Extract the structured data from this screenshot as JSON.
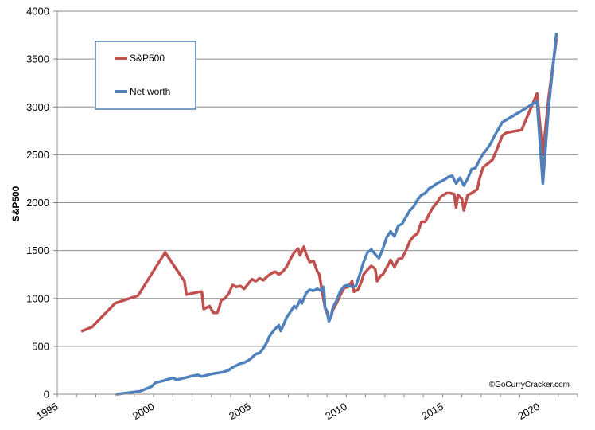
{
  "chart_data": {
    "type": "line",
    "ylabel": "S&P500",
    "ylim": [
      0,
      4000
    ],
    "xlim": [
      1995,
      2022
    ],
    "y_ticks": [
      0,
      500,
      1000,
      1500,
      2000,
      2500,
      3000,
      3500,
      4000
    ],
    "y_tick_labels": [
      "0",
      "500",
      "1000",
      "1500",
      "2000",
      "2500",
      "3000",
      "3500",
      "4000"
    ],
    "x_ticks": [
      1995,
      2000,
      2005,
      2010,
      2015,
      2020
    ],
    "x_tick_labels": [
      "1995",
      "2000",
      "2005",
      "2010",
      "2015",
      "2020"
    ],
    "grid": "horizontal",
    "legend_placement": "top-left",
    "annotation": "©GoCurryCracker.com",
    "series": [
      {
        "name": "S&P500",
        "color": "#c0504d",
        "points": [
          [
            1996.3,
            660
          ],
          [
            1996.8,
            700
          ],
          [
            1998.0,
            950
          ],
          [
            1999.2,
            1030
          ],
          [
            2000.6,
            1480
          ],
          [
            2001.6,
            1180
          ],
          [
            2001.7,
            1040
          ],
          [
            2002.4,
            1070
          ],
          [
            2002.5,
            1070
          ],
          [
            2002.6,
            890
          ],
          [
            2002.9,
            920
          ],
          [
            2003.1,
            850
          ],
          [
            2003.3,
            850
          ],
          [
            2003.4,
            900
          ],
          [
            2003.5,
            980
          ],
          [
            2003.7,
            1000
          ],
          [
            2003.9,
            1050
          ],
          [
            2004.1,
            1140
          ],
          [
            2004.3,
            1120
          ],
          [
            2004.5,
            1130
          ],
          [
            2004.7,
            1100
          ],
          [
            2004.9,
            1150
          ],
          [
            2005.1,
            1200
          ],
          [
            2005.3,
            1180
          ],
          [
            2005.5,
            1210
          ],
          [
            2005.7,
            1190
          ],
          [
            2005.9,
            1230
          ],
          [
            2006.1,
            1260
          ],
          [
            2006.3,
            1280
          ],
          [
            2006.5,
            1250
          ],
          [
            2006.7,
            1280
          ],
          [
            2006.9,
            1330
          ],
          [
            2007.1,
            1410
          ],
          [
            2007.3,
            1480
          ],
          [
            2007.5,
            1520
          ],
          [
            2007.6,
            1450
          ],
          [
            2007.8,
            1540
          ],
          [
            2007.9,
            1470
          ],
          [
            2008.1,
            1380
          ],
          [
            2008.3,
            1390
          ],
          [
            2008.5,
            1280
          ],
          [
            2008.6,
            1250
          ],
          [
            2008.7,
            1130
          ],
          [
            2008.8,
            1010
          ],
          [
            2008.9,
            900
          ],
          [
            2009.0,
            850
          ],
          [
            2009.1,
            780
          ],
          [
            2009.2,
            800
          ],
          [
            2009.3,
            880
          ],
          [
            2009.5,
            950
          ],
          [
            2009.7,
            1040
          ],
          [
            2009.9,
            1110
          ],
          [
            2010.1,
            1120
          ],
          [
            2010.3,
            1180
          ],
          [
            2010.4,
            1070
          ],
          [
            2010.6,
            1090
          ],
          [
            2010.8,
            1180
          ],
          [
            2010.9,
            1250
          ],
          [
            2011.1,
            1300
          ],
          [
            2011.3,
            1340
          ],
          [
            2011.5,
            1310
          ],
          [
            2011.6,
            1180
          ],
          [
            2011.8,
            1240
          ],
          [
            2011.9,
            1250
          ],
          [
            2012.2,
            1360
          ],
          [
            2012.3,
            1400
          ],
          [
            2012.5,
            1330
          ],
          [
            2012.7,
            1410
          ],
          [
            2012.9,
            1420
          ],
          [
            2013.1,
            1500
          ],
          [
            2013.3,
            1600
          ],
          [
            2013.5,
            1650
          ],
          [
            2013.7,
            1680
          ],
          [
            2013.9,
            1800
          ],
          [
            2014.1,
            1800
          ],
          [
            2014.3,
            1880
          ],
          [
            2014.5,
            1950
          ],
          [
            2014.7,
            2000
          ],
          [
            2014.9,
            2060
          ],
          [
            2015.2,
            2100
          ],
          [
            2015.4,
            2100
          ],
          [
            2015.6,
            2090
          ],
          [
            2015.7,
            1950
          ],
          [
            2015.8,
            2080
          ],
          [
            2016.0,
            2040
          ],
          [
            2016.1,
            1920
          ],
          [
            2016.3,
            2080
          ],
          [
            2016.5,
            2100
          ],
          [
            2016.8,
            2140
          ],
          [
            2016.9,
            2240
          ],
          [
            2017.1,
            2370
          ],
          [
            2017.3,
            2400
          ],
          [
            2017.6,
            2450
          ],
          [
            2017.9,
            2600
          ],
          [
            2018.1,
            2700
          ],
          [
            2018.3,
            2730
          ],
          [
            2019.1,
            2760
          ],
          [
            2019.9,
            3140
          ],
          [
            2020.2,
            2500
          ],
          [
            2020.5,
            3100
          ],
          [
            2020.9,
            3700
          ]
        ]
      },
      {
        "name": "Net worth",
        "color": "#4f81bd",
        "points": [
          [
            1998.1,
            0
          ],
          [
            1999.3,
            30
          ],
          [
            1999.9,
            80
          ],
          [
            2000.1,
            120
          ],
          [
            2000.5,
            140
          ],
          [
            2001.0,
            170
          ],
          [
            2001.2,
            150
          ],
          [
            2001.5,
            165
          ],
          [
            2002.0,
            190
          ],
          [
            2002.3,
            200
          ],
          [
            2002.5,
            185
          ],
          [
            2002.7,
            195
          ],
          [
            2003.0,
            210
          ],
          [
            2003.3,
            220
          ],
          [
            2003.6,
            230
          ],
          [
            2003.9,
            250
          ],
          [
            2004.1,
            280
          ],
          [
            2004.3,
            300
          ],
          [
            2004.5,
            320
          ],
          [
            2004.7,
            330
          ],
          [
            2004.9,
            350
          ],
          [
            2005.1,
            380
          ],
          [
            2005.3,
            420
          ],
          [
            2005.5,
            430
          ],
          [
            2005.7,
            480
          ],
          [
            2005.9,
            550
          ],
          [
            2006.0,
            600
          ],
          [
            2006.1,
            630
          ],
          [
            2006.3,
            680
          ],
          [
            2006.5,
            720
          ],
          [
            2006.6,
            660
          ],
          [
            2006.8,
            750
          ],
          [
            2006.9,
            800
          ],
          [
            2007.1,
            860
          ],
          [
            2007.3,
            920
          ],
          [
            2007.4,
            900
          ],
          [
            2007.6,
            980
          ],
          [
            2007.7,
            950
          ],
          [
            2007.9,
            1050
          ],
          [
            2008.1,
            1090
          ],
          [
            2008.3,
            1080
          ],
          [
            2008.5,
            1100
          ],
          [
            2008.7,
            1080
          ],
          [
            2008.8,
            1120
          ],
          [
            2008.85,
            1060
          ],
          [
            2008.9,
            900
          ],
          [
            2009.0,
            870
          ],
          [
            2009.1,
            760
          ],
          [
            2009.2,
            810
          ],
          [
            2009.3,
            900
          ],
          [
            2009.5,
            980
          ],
          [
            2009.7,
            1080
          ],
          [
            2009.9,
            1130
          ],
          [
            2010.1,
            1140
          ],
          [
            2010.3,
            1120
          ],
          [
            2010.5,
            1130
          ],
          [
            2010.7,
            1250
          ],
          [
            2010.9,
            1380
          ],
          [
            2011.1,
            1480
          ],
          [
            2011.3,
            1510
          ],
          [
            2011.5,
            1460
          ],
          [
            2011.7,
            1420
          ],
          [
            2011.9,
            1520
          ],
          [
            2012.1,
            1640
          ],
          [
            2012.3,
            1700
          ],
          [
            2012.5,
            1650
          ],
          [
            2012.7,
            1760
          ],
          [
            2012.9,
            1780
          ],
          [
            2013.1,
            1850
          ],
          [
            2013.3,
            1920
          ],
          [
            2013.5,
            1960
          ],
          [
            2013.7,
            2030
          ],
          [
            2013.9,
            2080
          ],
          [
            2014.1,
            2100
          ],
          [
            2014.3,
            2150
          ],
          [
            2014.5,
            2170
          ],
          [
            2014.7,
            2200
          ],
          [
            2014.9,
            2220
          ],
          [
            2015.1,
            2240
          ],
          [
            2015.3,
            2270
          ],
          [
            2015.5,
            2280
          ],
          [
            2015.7,
            2200
          ],
          [
            2015.9,
            2260
          ],
          [
            2016.1,
            2180
          ],
          [
            2016.3,
            2250
          ],
          [
            2016.5,
            2350
          ],
          [
            2016.7,
            2360
          ],
          [
            2016.9,
            2440
          ],
          [
            2017.1,
            2510
          ],
          [
            2017.3,
            2560
          ],
          [
            2017.5,
            2620
          ],
          [
            2017.7,
            2700
          ],
          [
            2018.1,
            2840
          ],
          [
            2019.1,
            2960
          ],
          [
            2019.9,
            3060
          ],
          [
            2020.2,
            2200
          ],
          [
            2020.5,
            3000
          ],
          [
            2020.9,
            3760
          ]
        ]
      }
    ]
  },
  "legend": {
    "items": [
      {
        "label": "S&P500",
        "color": "#c0504d"
      },
      {
        "label": "Net worth",
        "color": "#4f81bd"
      }
    ]
  }
}
